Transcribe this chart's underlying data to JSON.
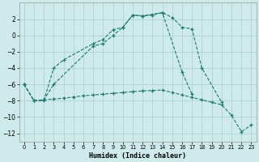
{
  "xlabel": "Humidex (Indice chaleur)",
  "bg_color": "#ceeaea",
  "grid_color": "#aed4d4",
  "line_color": "#1a7a6e",
  "ylim": [
    -13,
    4
  ],
  "xlim": [
    -0.5,
    23.5
  ],
  "yticks": [
    2,
    0,
    -2,
    -4,
    -6,
    -8,
    -10,
    -12
  ],
  "xticks": [
    0,
    1,
    2,
    3,
    4,
    5,
    6,
    7,
    8,
    9,
    10,
    11,
    12,
    13,
    14,
    15,
    16,
    17,
    18,
    19,
    20,
    21,
    22,
    23
  ],
  "line1_x": [
    0,
    1,
    2,
    3,
    4,
    7,
    8,
    9,
    10,
    11,
    12,
    13,
    14,
    15,
    16,
    17,
    18,
    20
  ],
  "line1_y": [
    -6,
    -8,
    -8,
    -4,
    -3,
    -1,
    -0.5,
    0.7,
    1.0,
    2.5,
    2.4,
    2.5,
    2.8,
    2.2,
    1.0,
    0.8,
    -4.0,
    -8.2
  ],
  "line2_x": [
    0,
    1,
    2,
    3,
    7,
    8,
    9,
    10,
    11,
    12,
    14,
    16,
    17
  ],
  "line2_y": [
    -6,
    -8,
    -7.9,
    -6,
    -1.3,
    -1.0,
    0.0,
    1.0,
    2.5,
    2.4,
    2.8,
    -4.5,
    -7.2
  ],
  "line3_x": [
    0,
    1,
    2,
    3,
    4,
    5,
    6,
    7,
    8,
    9,
    10,
    11,
    12,
    13,
    14,
    15,
    16,
    17,
    18,
    19,
    20,
    21,
    22,
    23
  ],
  "line3_y": [
    -6,
    -8,
    -7.9,
    -7.8,
    -7.7,
    -7.55,
    -7.4,
    -7.3,
    -7.2,
    -7.1,
    -7.0,
    -6.9,
    -6.8,
    -6.75,
    -6.7,
    -7.0,
    -7.3,
    -7.6,
    -7.9,
    -8.2,
    -8.5,
    -9.8,
    -11.8,
    -11.0
  ]
}
